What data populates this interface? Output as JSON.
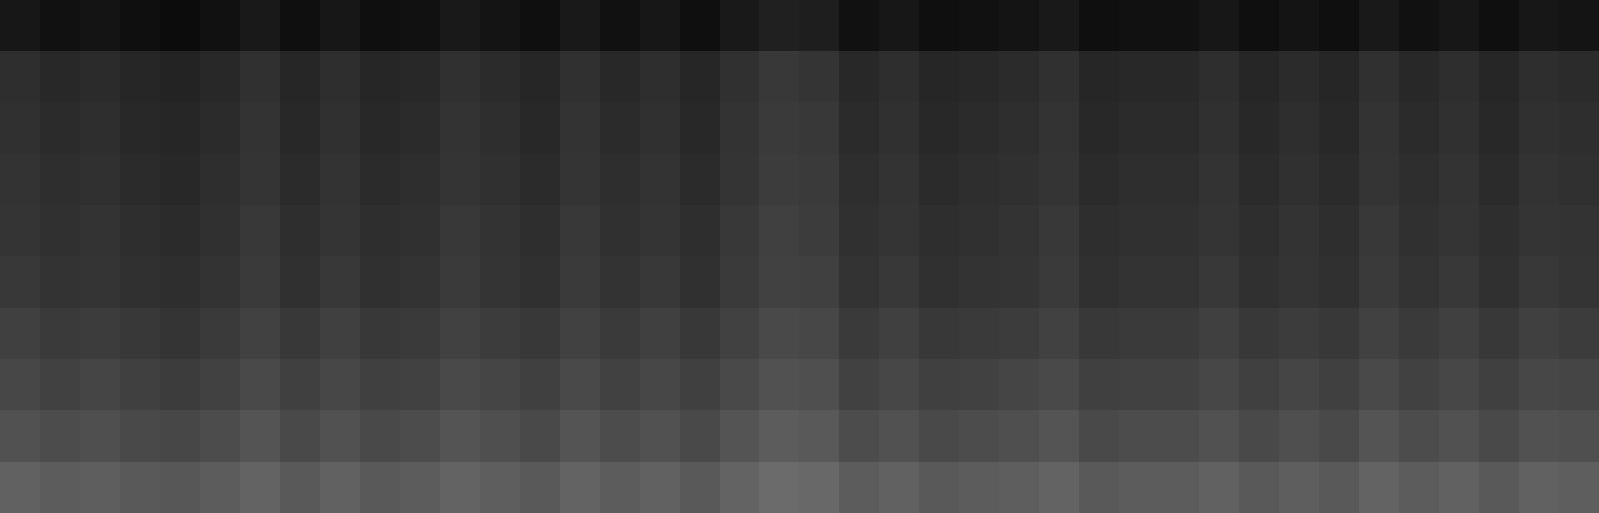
{
  "chart_data": {
    "type": "heatmap",
    "color": "gray",
    "tick_labels": false,
    "grid": false,
    "value_range": [
      0,
      100
    ],
    "cells": [
      [
        9,
        7,
        8,
        6,
        5,
        7,
        10,
        6,
        9,
        6,
        7,
        10,
        8,
        6,
        10,
        7,
        9,
        6,
        10,
        13,
        12,
        7,
        9,
        6,
        7,
        8,
        10,
        6,
        7,
        7,
        9,
        6,
        8,
        6,
        10,
        7,
        9,
        6,
        9,
        8
      ],
      [
        18,
        16,
        17,
        15,
        14,
        16,
        19,
        15,
        18,
        15,
        16,
        19,
        17,
        15,
        19,
        16,
        18,
        15,
        19,
        22,
        21,
        16,
        18,
        15,
        16,
        17,
        19,
        15,
        16,
        16,
        18,
        15,
        17,
        15,
        19,
        16,
        18,
        15,
        18,
        17
      ],
      [
        19,
        17,
        18,
        16,
        15,
        17,
        20,
        16,
        19,
        16,
        17,
        20,
        18,
        16,
        20,
        17,
        19,
        16,
        20,
        23,
        22,
        17,
        19,
        16,
        17,
        18,
        20,
        16,
        17,
        17,
        19,
        16,
        18,
        16,
        20,
        17,
        19,
        16,
        19,
        18
      ],
      [
        20,
        18,
        19,
        17,
        16,
        18,
        21,
        17,
        20,
        17,
        18,
        21,
        19,
        17,
        21,
        18,
        20,
        17,
        21,
        24,
        23,
        18,
        20,
        17,
        18,
        19,
        21,
        17,
        18,
        18,
        20,
        17,
        19,
        17,
        21,
        18,
        20,
        17,
        20,
        19
      ],
      [
        21,
        19,
        20,
        18,
        17,
        19,
        22,
        18,
        21,
        18,
        19,
        22,
        20,
        18,
        22,
        19,
        21,
        18,
        22,
        25,
        24,
        19,
        21,
        18,
        19,
        20,
        22,
        18,
        19,
        19,
        21,
        18,
        20,
        18,
        22,
        19,
        21,
        18,
        21,
        20
      ],
      [
        22,
        20,
        21,
        19,
        18,
        20,
        23,
        19,
        22,
        19,
        20,
        23,
        21,
        19,
        23,
        20,
        22,
        19,
        23,
        26,
        25,
        20,
        22,
        19,
        20,
        21,
        23,
        19,
        20,
        20,
        22,
        19,
        21,
        19,
        23,
        20,
        22,
        19,
        22,
        21
      ],
      [
        25,
        23,
        24,
        22,
        21,
        23,
        26,
        22,
        25,
        22,
        23,
        26,
        24,
        22,
        26,
        23,
        25,
        22,
        26,
        29,
        28,
        23,
        25,
        22,
        23,
        24,
        26,
        22,
        23,
        23,
        25,
        22,
        24,
        22,
        26,
        23,
        25,
        22,
        25,
        24
      ],
      [
        28,
        26,
        27,
        25,
        24,
        26,
        29,
        25,
        28,
        25,
        26,
        29,
        27,
        25,
        29,
        26,
        28,
        25,
        29,
        32,
        31,
        26,
        28,
        25,
        26,
        27,
        29,
        25,
        26,
        26,
        28,
        25,
        27,
        25,
        29,
        26,
        28,
        25,
        28,
        27
      ],
      [
        32,
        30,
        31,
        29,
        28,
        30,
        33,
        29,
        32,
        29,
        30,
        33,
        31,
        29,
        33,
        30,
        32,
        29,
        33,
        36,
        35,
        30,
        32,
        29,
        30,
        31,
        33,
        29,
        30,
        30,
        32,
        29,
        31,
        29,
        33,
        30,
        32,
        29,
        32,
        31
      ],
      [
        38,
        36,
        37,
        35,
        34,
        36,
        39,
        35,
        38,
        35,
        36,
        39,
        37,
        35,
        39,
        36,
        38,
        35,
        39,
        42,
        41,
        36,
        38,
        35,
        36,
        37,
        39,
        35,
        36,
        36,
        38,
        35,
        37,
        35,
        39,
        36,
        38,
        35,
        38,
        37
      ]
    ]
  }
}
